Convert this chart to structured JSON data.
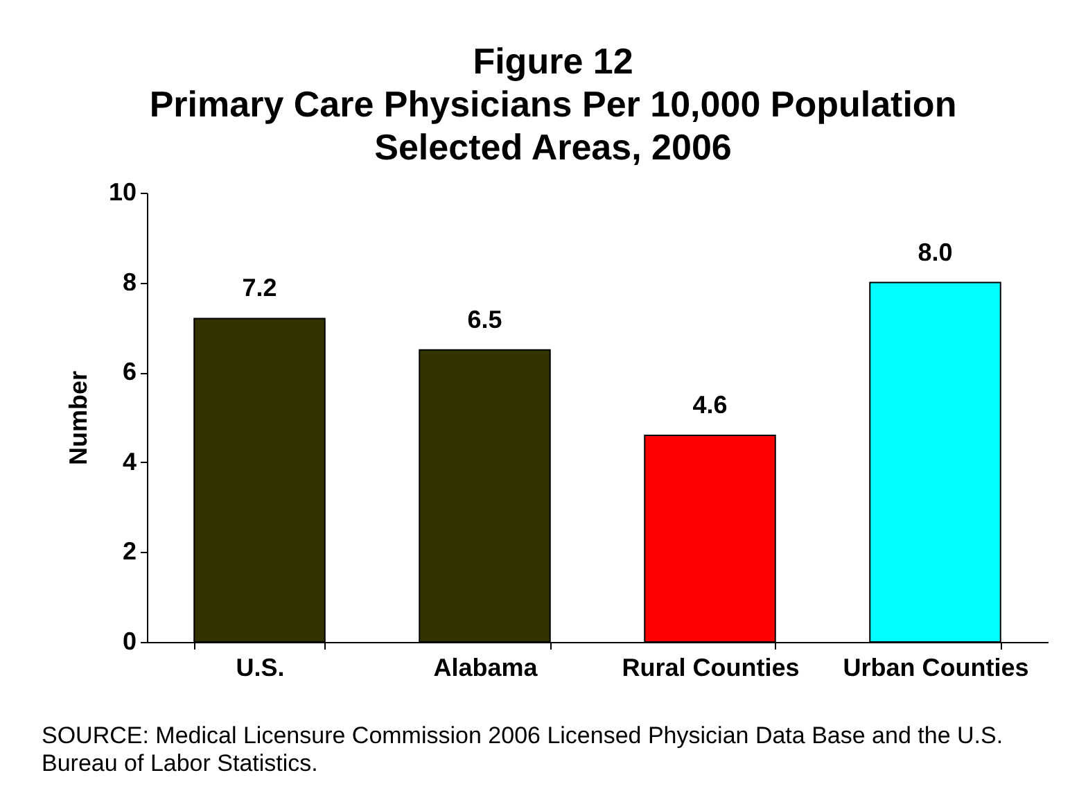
{
  "chart_data": {
    "type": "bar",
    "title": "Figure 12\nPrimary Care Physicians Per 10,000 Population\nSelected Areas, 2006",
    "ylabel": "Number",
    "categories": [
      "U.S.",
      "Alabama",
      "Rural Counties",
      "Urban Counties"
    ],
    "values": [
      7.2,
      6.5,
      4.6,
      8.0
    ],
    "value_labels": [
      "7.2",
      "6.5",
      "4.6",
      "8.0"
    ],
    "colors": [
      "#333300",
      "#333300",
      "#ff0000",
      "#00ffff"
    ],
    "ylim": [
      0,
      10
    ],
    "yticks": [
      0,
      2,
      4,
      6,
      8,
      10
    ],
    "annotations": [
      "SOURCE: Medical Licensure Commission 2006 Licensed Physician Data Base and the U.S. Bureau of Labor Statistics."
    ]
  }
}
